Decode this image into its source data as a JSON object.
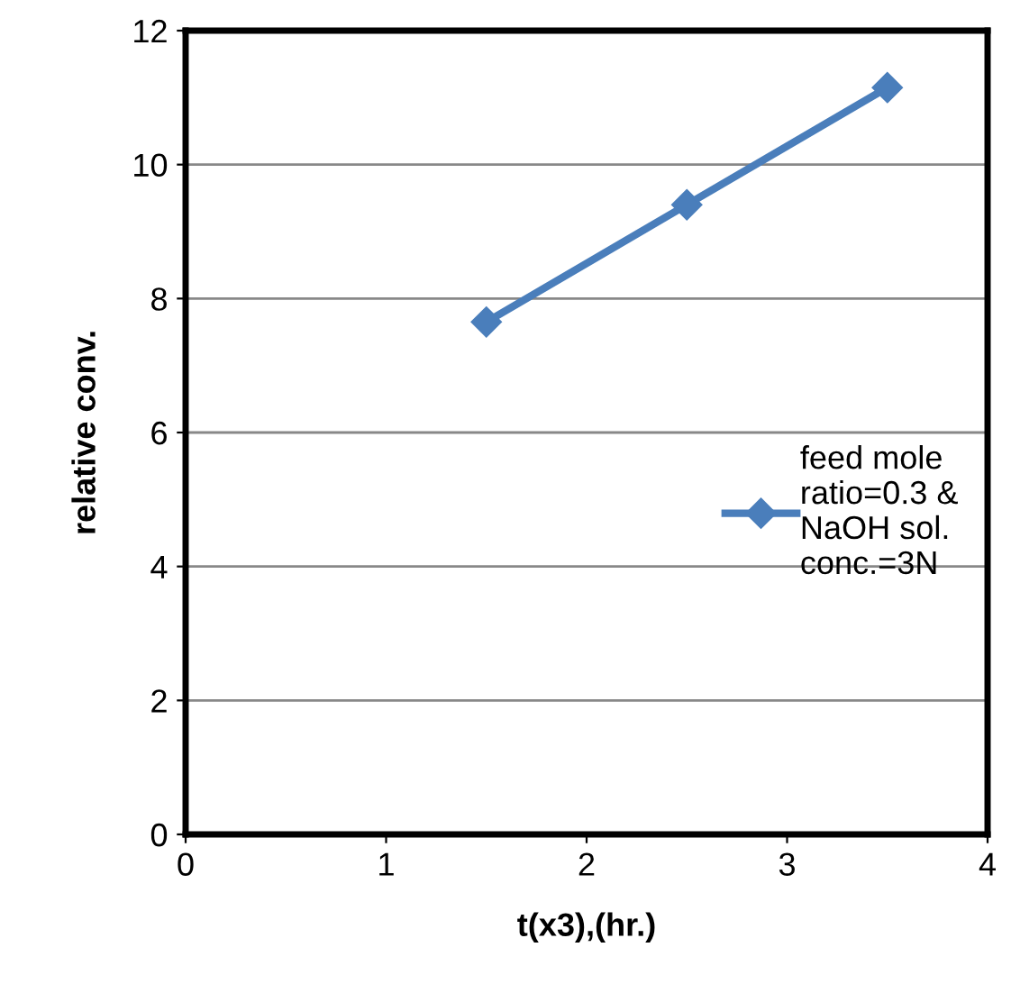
{
  "chart_data": {
    "type": "line",
    "xlabel": "t(x3),(hr.)",
    "ylabel": "relative conv.",
    "x": [
      1.5,
      2.5,
      3.5
    ],
    "series": [
      {
        "name": "feed mole\nratio=0.3 &\nNaOH sol.\nconc.=3N",
        "color": "#4a7ebb",
        "values": [
          7.65,
          9.4,
          11.15
        ]
      }
    ],
    "xlim": [
      0,
      4
    ],
    "xticks": [
      0,
      1,
      2,
      3,
      4
    ],
    "ylim": [
      0,
      12
    ],
    "yticks": [
      0,
      2,
      4,
      6,
      8,
      10,
      12
    ],
    "grid": "y",
    "legend": "right",
    "marker": "diamond",
    "line_style": "solid"
  }
}
